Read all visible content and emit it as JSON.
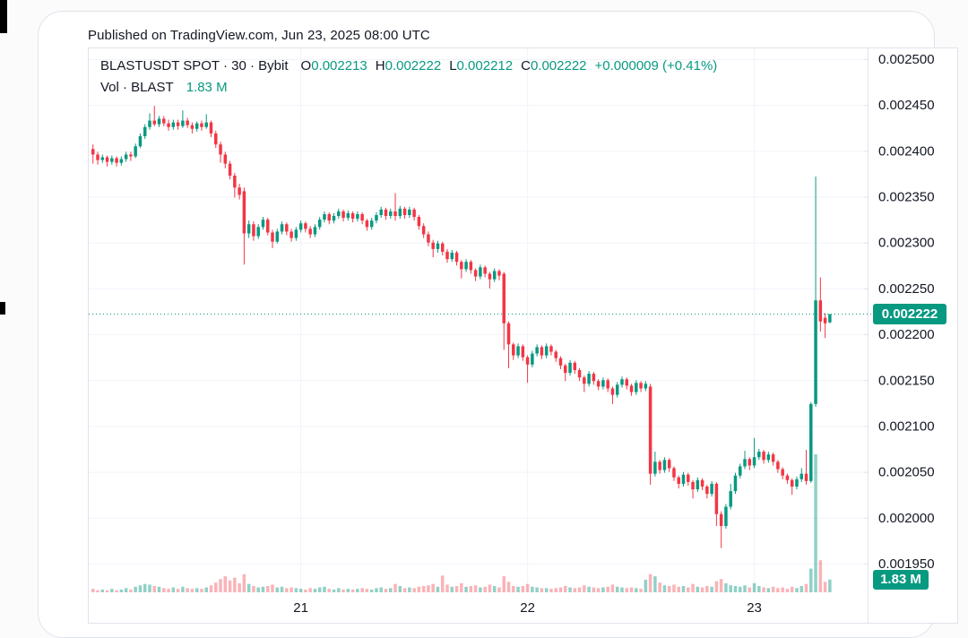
{
  "window": {
    "published": "Published on TradingView.com, Jun 23, 2025 08:00 UTC"
  },
  "legend": {
    "symbol": "BLASTUSDT SPOT · 30 · Bybit",
    "ohlc": {
      "o_label": "O",
      "o": "0.002213",
      "h_label": "H",
      "h": "0.002222",
      "l_label": "L",
      "l": "0.002212",
      "c_label": "C",
      "c": "0.002222",
      "change": "+0.000009 (+0.41%)"
    },
    "vol_label": "Vol · BLAST",
    "vol_value": "1.83 M"
  },
  "price_axis": {
    "tick_labels": [
      "0.002500",
      "0.002450",
      "0.002400",
      "0.002350",
      "0.002300",
      "0.002250",
      "0.002200",
      "0.002150",
      "0.002100",
      "0.002050",
      "0.002000",
      "0.001950"
    ],
    "tick_values_micro": [
      2500,
      2450,
      2400,
      2350,
      2300,
      2250,
      2200,
      2150,
      2100,
      2050,
      2000,
      1950
    ],
    "badge": "0.002222"
  },
  "time_axis": {
    "labels": [
      {
        "text": "21",
        "candle_index": 44
      },
      {
        "text": "22",
        "candle_index": 92
      },
      {
        "text": "23",
        "candle_index": 140
      }
    ]
  },
  "volume_axis": {
    "badge": "1.83 M"
  },
  "colors": {
    "up": "#089981",
    "down": "#f23645",
    "vol_up": "rgba(8,153,129,0.45)",
    "vol_down": "rgba(242,54,69,0.38)",
    "grid": "#f0f3fa",
    "border": "#e0e3eb",
    "text": "#131722",
    "accent": "#089981"
  },
  "chart_data": {
    "type": "candlestick",
    "title": "BLASTUSDT SPOT · 30 · Bybit",
    "symbol": "BLASTUSDT",
    "exchange": "Bybit",
    "interval_minutes": 30,
    "price_unit": "micro USDT (value × 1e-6)",
    "ylim_micro": [
      1918,
      2512
    ],
    "grid": "on",
    "last_price_micro": 2222,
    "last_candle": {
      "open": "0.002213",
      "high": "0.002222",
      "low": "0.002212",
      "close": "0.002222"
    },
    "last_volume": "1.83 M",
    "candles_ohlc_micro": [
      [
        2402,
        2407,
        2386,
        2396
      ],
      [
        2396,
        2399,
        2385,
        2390
      ],
      [
        2390,
        2396,
        2387,
        2393
      ],
      [
        2393,
        2395,
        2383,
        2388
      ],
      [
        2388,
        2395,
        2385,
        2392
      ],
      [
        2392,
        2394,
        2383,
        2387
      ],
      [
        2387,
        2394,
        2384,
        2391
      ],
      [
        2391,
        2399,
        2388,
        2396
      ],
      [
        2396,
        2399,
        2389,
        2394
      ],
      [
        2394,
        2408,
        2392,
        2405
      ],
      [
        2405,
        2419,
        2403,
        2416
      ],
      [
        2416,
        2429,
        2413,
        2426
      ],
      [
        2426,
        2441,
        2423,
        2433
      ],
      [
        2433,
        2449,
        2427,
        2429
      ],
      [
        2429,
        2438,
        2426,
        2435
      ],
      [
        2435,
        2438,
        2427,
        2430
      ],
      [
        2430,
        2434,
        2422,
        2426
      ],
      [
        2426,
        2434,
        2423,
        2431
      ],
      [
        2431,
        2434,
        2423,
        2427
      ],
      [
        2427,
        2444,
        2425,
        2433
      ],
      [
        2433,
        2436,
        2425,
        2428
      ],
      [
        2428,
        2431,
        2419,
        2424
      ],
      [
        2424,
        2432,
        2421,
        2430
      ],
      [
        2430,
        2433,
        2422,
        2426
      ],
      [
        2426,
        2440,
        2424,
        2431
      ],
      [
        2431,
        2433,
        2415,
        2419
      ],
      [
        2419,
        2422,
        2403,
        2407
      ],
      [
        2407,
        2410,
        2387,
        2396
      ],
      [
        2396,
        2399,
        2381,
        2386
      ],
      [
        2386,
        2389,
        2369,
        2373
      ],
      [
        2373,
        2376,
        2349,
        2360
      ],
      [
        2360,
        2364,
        2347,
        2352
      ],
      [
        2356,
        2360,
        2276,
        2310
      ],
      [
        2310,
        2324,
        2305,
        2320
      ],
      [
        2320,
        2323,
        2302,
        2307
      ],
      [
        2307,
        2320,
        2304,
        2317
      ],
      [
        2317,
        2328,
        2314,
        2325
      ],
      [
        2325,
        2327,
        2308,
        2311
      ],
      [
        2311,
        2314,
        2294,
        2301
      ],
      [
        2301,
        2315,
        2299,
        2312
      ],
      [
        2312,
        2323,
        2309,
        2320
      ],
      [
        2320,
        2322,
        2308,
        2312
      ],
      [
        2312,
        2315,
        2301,
        2305
      ],
      [
        2305,
        2317,
        2302,
        2314
      ],
      [
        2314,
        2324,
        2311,
        2321
      ],
      [
        2321,
        2323,
        2311,
        2315
      ],
      [
        2315,
        2318,
        2305,
        2309
      ],
      [
        2309,
        2320,
        2306,
        2317
      ],
      [
        2317,
        2328,
        2314,
        2325
      ],
      [
        2325,
        2334,
        2322,
        2331
      ],
      [
        2331,
        2333,
        2320,
        2324
      ],
      [
        2324,
        2332,
        2321,
        2329
      ],
      [
        2329,
        2337,
        2326,
        2334
      ],
      [
        2334,
        2336,
        2323,
        2327
      ],
      [
        2327,
        2335,
        2324,
        2332
      ],
      [
        2332,
        2334,
        2322,
        2326
      ],
      [
        2326,
        2334,
        2323,
        2331
      ],
      [
        2331,
        2333,
        2320,
        2324
      ],
      [
        2324,
        2326,
        2313,
        2317
      ],
      [
        2317,
        2327,
        2314,
        2324
      ],
      [
        2324,
        2333,
        2321,
        2330
      ],
      [
        2330,
        2339,
        2327,
        2336
      ],
      [
        2336,
        2338,
        2325,
        2329
      ],
      [
        2329,
        2337,
        2326,
        2334
      ],
      [
        2334,
        2354,
        2324,
        2329
      ],
      [
        2329,
        2340,
        2326,
        2337
      ],
      [
        2337,
        2339,
        2326,
        2330
      ],
      [
        2330,
        2339,
        2327,
        2336
      ],
      [
        2336,
        2338,
        2324,
        2328
      ],
      [
        2328,
        2330,
        2314,
        2318
      ],
      [
        2318,
        2321,
        2305,
        2309
      ],
      [
        2309,
        2312,
        2296,
        2300
      ],
      [
        2300,
        2303,
        2284,
        2293
      ],
      [
        2293,
        2302,
        2289,
        2299
      ],
      [
        2299,
        2301,
        2286,
        2290
      ],
      [
        2290,
        2293,
        2278,
        2282
      ],
      [
        2282,
        2292,
        2279,
        2289
      ],
      [
        2289,
        2291,
        2275,
        2279
      ],
      [
        2279,
        2281,
        2261,
        2271
      ],
      [
        2271,
        2282,
        2268,
        2279
      ],
      [
        2279,
        2281,
        2266,
        2270
      ],
      [
        2270,
        2272,
        2258,
        2263
      ],
      [
        2263,
        2276,
        2260,
        2273
      ],
      [
        2273,
        2275,
        2262,
        2266
      ],
      [
        2266,
        2268,
        2250,
        2260
      ],
      [
        2260,
        2272,
        2257,
        2269
      ],
      [
        2269,
        2271,
        2259,
        2264
      ],
      [
        2266,
        2268,
        2183,
        2212
      ],
      [
        2212,
        2214,
        2163,
        2189
      ],
      [
        2189,
        2191,
        2172,
        2177
      ],
      [
        2177,
        2190,
        2174,
        2187
      ],
      [
        2187,
        2189,
        2171,
        2175
      ],
      [
        2175,
        2177,
        2147,
        2167
      ],
      [
        2167,
        2182,
        2164,
        2179
      ],
      [
        2179,
        2189,
        2176,
        2186
      ],
      [
        2186,
        2188,
        2173,
        2177
      ],
      [
        2177,
        2190,
        2174,
        2187
      ],
      [
        2187,
        2189,
        2177,
        2181
      ],
      [
        2181,
        2183,
        2170,
        2174
      ],
      [
        2174,
        2176,
        2162,
        2166
      ],
      [
        2166,
        2168,
        2149,
        2158
      ],
      [
        2158,
        2172,
        2155,
        2169
      ],
      [
        2169,
        2171,
        2157,
        2161
      ],
      [
        2161,
        2163,
        2149,
        2153
      ],
      [
        2153,
        2155,
        2137,
        2146
      ],
      [
        2146,
        2160,
        2143,
        2157
      ],
      [
        2157,
        2159,
        2145,
        2149
      ],
      [
        2149,
        2151,
        2139,
        2143
      ],
      [
        2143,
        2153,
        2140,
        2150
      ],
      [
        2150,
        2152,
        2137,
        2141
      ],
      [
        2141,
        2143,
        2124,
        2134
      ],
      [
        2134,
        2148,
        2131,
        2145
      ],
      [
        2145,
        2154,
        2142,
        2151
      ],
      [
        2151,
        2153,
        2140,
        2144
      ],
      [
        2144,
        2146,
        2133,
        2137
      ],
      [
        2137,
        2150,
        2134,
        2147
      ],
      [
        2147,
        2149,
        2137,
        2141
      ],
      [
        2141,
        2149,
        2138,
        2146
      ],
      [
        2143,
        2146,
        2036,
        2048
      ],
      [
        2048,
        2072,
        2045,
        2061
      ],
      [
        2061,
        2063,
        2048,
        2052
      ],
      [
        2052,
        2066,
        2049,
        2063
      ],
      [
        2063,
        2065,
        2050,
        2054
      ],
      [
        2054,
        2056,
        2040,
        2044
      ],
      [
        2044,
        2046,
        2032,
        2037
      ],
      [
        2037,
        2050,
        2034,
        2047
      ],
      [
        2047,
        2049,
        2035,
        2039
      ],
      [
        2039,
        2041,
        2021,
        2031
      ],
      [
        2031,
        2044,
        2028,
        2041
      ],
      [
        2041,
        2043,
        2030,
        2034
      ],
      [
        2034,
        2036,
        2021,
        2026
      ],
      [
        2026,
        2040,
        2023,
        2037
      ],
      [
        2037,
        2039,
        1991,
        2004
      ],
      [
        2004,
        2007,
        1967,
        1991
      ],
      [
        1991,
        2015,
        1988,
        2012
      ],
      [
        2012,
        2037,
        2009,
        2029
      ],
      [
        2029,
        2049,
        2026,
        2046
      ],
      [
        2046,
        2059,
        2043,
        2056
      ],
      [
        2056,
        2073,
        2053,
        2064
      ],
      [
        2064,
        2066,
        2052,
        2057
      ],
      [
        2057,
        2087,
        2054,
        2066
      ],
      [
        2066,
        2075,
        2063,
        2072
      ],
      [
        2072,
        2074,
        2059,
        2063
      ],
      [
        2063,
        2072,
        2060,
        2069
      ],
      [
        2069,
        2071,
        2057,
        2061
      ],
      [
        2061,
        2063,
        2049,
        2053
      ],
      [
        2053,
        2055,
        2042,
        2046
      ],
      [
        2046,
        2048,
        2037,
        2041
      ],
      [
        2041,
        2043,
        2025,
        2034
      ],
      [
        2034,
        2045,
        2031,
        2042
      ],
      [
        2042,
        2054,
        2039,
        2048
      ],
      [
        2048,
        2074,
        2036,
        2040
      ],
      [
        2040,
        2126,
        2038,
        2124
      ],
      [
        2124,
        2372,
        2121,
        2237
      ],
      [
        2237,
        2262,
        2203,
        2214
      ],
      [
        2218,
        2223,
        2196,
        2212
      ],
      [
        2213,
        2222,
        2212,
        2222
      ]
    ],
    "volumes_millions": [
      0.5,
      0.3,
      0.4,
      0.3,
      0.5,
      0.3,
      0.4,
      0.6,
      0.4,
      0.8,
      1.0,
      1.2,
      1.1,
      0.9,
      0.8,
      0.6,
      0.5,
      0.7,
      0.5,
      0.8,
      0.6,
      0.5,
      0.6,
      0.5,
      0.7,
      1.0,
      1.4,
      1.9,
      2.3,
      1.7,
      2.1,
      1.3,
      2.6,
      1.2,
      0.9,
      0.7,
      0.8,
      0.9,
      1.1,
      0.7,
      0.8,
      0.6,
      0.7,
      0.6,
      0.5,
      0.4,
      0.6,
      0.5,
      0.7,
      0.8,
      0.5,
      0.4,
      0.6,
      0.4,
      0.5,
      0.4,
      0.5,
      0.6,
      0.5,
      0.4,
      0.6,
      0.7,
      0.5,
      0.6,
      1.2,
      0.9,
      0.6,
      0.7,
      0.6,
      0.8,
      0.9,
      1.0,
      1.2,
      0.8,
      2.4,
      1.1,
      0.8,
      0.9,
      1.3,
      0.8,
      0.9,
      1.0,
      0.7,
      0.8,
      1.1,
      0.9,
      0.7,
      2.3,
      1.5,
      0.9,
      0.8,
      0.9,
      1.2,
      0.8,
      0.7,
      0.6,
      0.6,
      0.5,
      0.6,
      0.7,
      0.9,
      0.7,
      0.6,
      0.7,
      1.0,
      0.8,
      0.7,
      0.6,
      0.7,
      0.8,
      1.1,
      0.8,
      0.7,
      0.6,
      0.7,
      0.6,
      0.5,
      1.8,
      2.6,
      2.3,
      1.4,
      1.0,
      0.9,
      1.1,
      0.8,
      0.9,
      0.7,
      1.2,
      0.8,
      0.7,
      0.9,
      0.8,
      1.6,
      1.9,
      1.3,
      1.0,
      0.9,
      0.8,
      1.0,
      0.7,
      1.3,
      0.9,
      0.7,
      0.6,
      0.8,
      0.6,
      0.7,
      0.5,
      0.8,
      0.6,
      0.9,
      1.2,
      3.4,
      19.8,
      4.6,
      1.5,
      1.83
    ]
  }
}
